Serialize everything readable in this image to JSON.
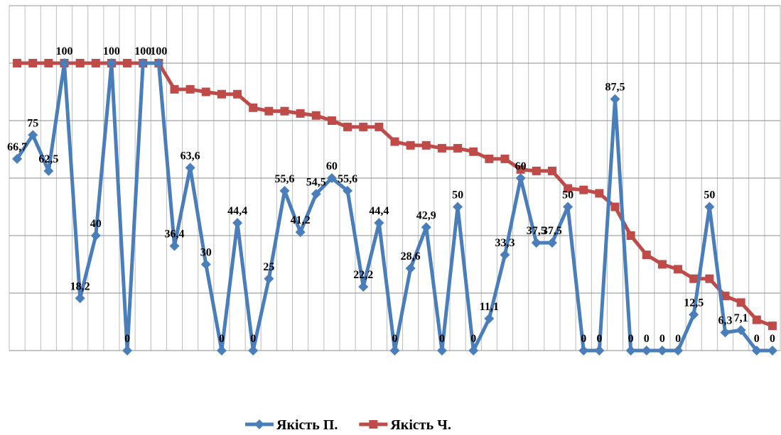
{
  "chart_data": {
    "type": "line",
    "categories": [
      null,
      null,
      null,
      null,
      null,
      null,
      null,
      null,
      null,
      null,
      null,
      null,
      null,
      null,
      null,
      null,
      null,
      null,
      null,
      null,
      null,
      null,
      null,
      null,
      null,
      null,
      null,
      null,
      null,
      null,
      null,
      null,
      null,
      null,
      null,
      null,
      null,
      null,
      null,
      null,
      null,
      null,
      null,
      null,
      null,
      null,
      null,
      null,
      null
    ],
    "series": [
      {
        "name": "Якість П.",
        "color": "#4a7ebb",
        "marker": "diamond",
        "values": [
          66.7,
          75,
          62.5,
          100,
          18.2,
          40,
          100,
          0,
          100,
          100,
          36.4,
          63.6,
          30,
          0,
          44.4,
          0,
          25,
          55.6,
          41.2,
          54.5,
          60,
          55.6,
          22.2,
          44.4,
          0,
          28.6,
          42.9,
          0,
          50,
          0,
          11.1,
          33.3,
          60,
          37.5,
          37.5,
          50,
          0,
          0,
          87.5,
          0,
          0,
          0,
          0,
          12.5,
          50,
          6.3,
          7.1,
          0,
          0
        ],
        "value_labels": [
          "66,7",
          "75",
          "62,5",
          "100",
          "18,2",
          "40",
          "100",
          "0",
          "100",
          "100",
          "36,4",
          "63,6",
          "30",
          "0",
          "44,4",
          "0",
          "25",
          "55,6",
          "41,2",
          "54,5",
          "60",
          "55,6",
          "22,2",
          "44,4",
          "0",
          "28,6",
          "42,9",
          "0",
          "50",
          "0",
          "11,1",
          "33,3",
          "60",
          "37,5",
          "37,5",
          "50",
          "0",
          "0",
          "87,5",
          "0",
          "0",
          "0",
          "0",
          "12,5",
          "50",
          "6,3",
          "7,1",
          "0",
          "0"
        ]
      },
      {
        "name": "Якість Ч.",
        "color": "#be4b48",
        "marker": "square",
        "values": [
          100,
          100,
          100,
          100,
          100,
          100,
          100,
          100,
          100,
          100,
          90.9,
          90.9,
          90,
          89.2,
          89.2,
          84.5,
          83.3,
          83.3,
          82.5,
          81.8,
          80,
          77.8,
          77.8,
          77.8,
          72.7,
          71.4,
          71.4,
          70.4,
          70.4,
          69.2,
          66.7,
          66.7,
          63,
          62.5,
          62.5,
          56.4,
          55.9,
          54.7,
          50,
          40,
          33.3,
          30,
          28.3,
          25,
          25,
          19,
          16.7,
          10.7,
          8.6
        ]
      }
    ],
    "ylim": [
      0,
      120
    ],
    "yticks": [
      0,
      20,
      40,
      60,
      80,
      100,
      120
    ],
    "grid": true,
    "legend": "bottom"
  }
}
